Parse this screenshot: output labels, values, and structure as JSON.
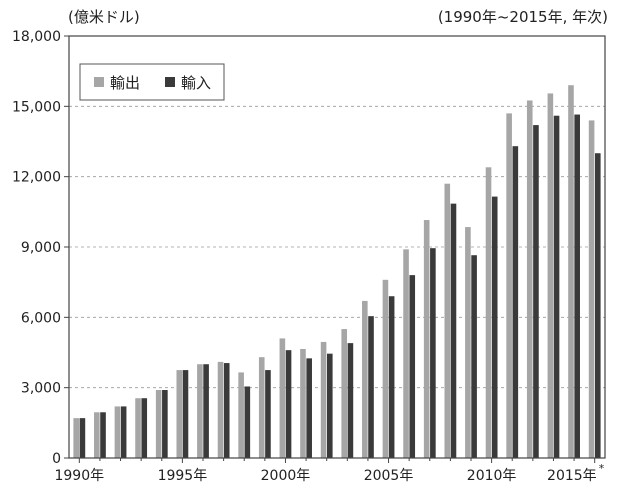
{
  "chart_data": {
    "type": "bar",
    "unit_label": "(億米ドル)",
    "period_label": "(1990年~2015年, 年次)",
    "ylim": [
      0,
      18000
    ],
    "yticks": [
      "0",
      "3,000",
      "6,000",
      "9,000",
      "12,000",
      "15,000",
      "18,000"
    ],
    "ytick_values": [
      0,
      3000,
      6000,
      9000,
      12000,
      15000,
      18000
    ],
    "grid": true,
    "legend_position": "top-left",
    "x": [
      1990,
      1991,
      1992,
      1993,
      1994,
      1995,
      1996,
      1997,
      1998,
      1999,
      2000,
      2001,
      2002,
      2003,
      2004,
      2005,
      2006,
      2007,
      2008,
      2009,
      2010,
      2011,
      2012,
      2013,
      2014,
      2015
    ],
    "xtick_labels": [
      {
        "year": 1990,
        "label": "1990年"
      },
      {
        "year": 1995,
        "label": "1995年"
      },
      {
        "year": 2000,
        "label": "2000年"
      },
      {
        "year": 2005,
        "label": "2005年"
      },
      {
        "year": 2010,
        "label": "2010年"
      },
      {
        "year": 2015,
        "label": "2015年",
        "note": "*"
      }
    ],
    "series": [
      {
        "name": "輸出",
        "color": "#a6a6a6",
        "values": [
          1700,
          1950,
          2200,
          2550,
          2900,
          3750,
          4000,
          4100,
          3650,
          4300,
          5100,
          4650,
          4950,
          5500,
          6700,
          7600,
          8900,
          10150,
          11700,
          9850,
          12400,
          14700,
          15250,
          15550,
          15900,
          14400
        ]
      },
      {
        "name": "輸入",
        "color": "#3a3a3a",
        "values": [
          1700,
          1950,
          2200,
          2550,
          2900,
          3750,
          4000,
          4050,
          3050,
          3750,
          4600,
          4250,
          4450,
          4900,
          6050,
          6900,
          7800,
          8950,
          10850,
          8650,
          11150,
          13300,
          14200,
          14600,
          14650,
          13000
        ]
      }
    ]
  }
}
